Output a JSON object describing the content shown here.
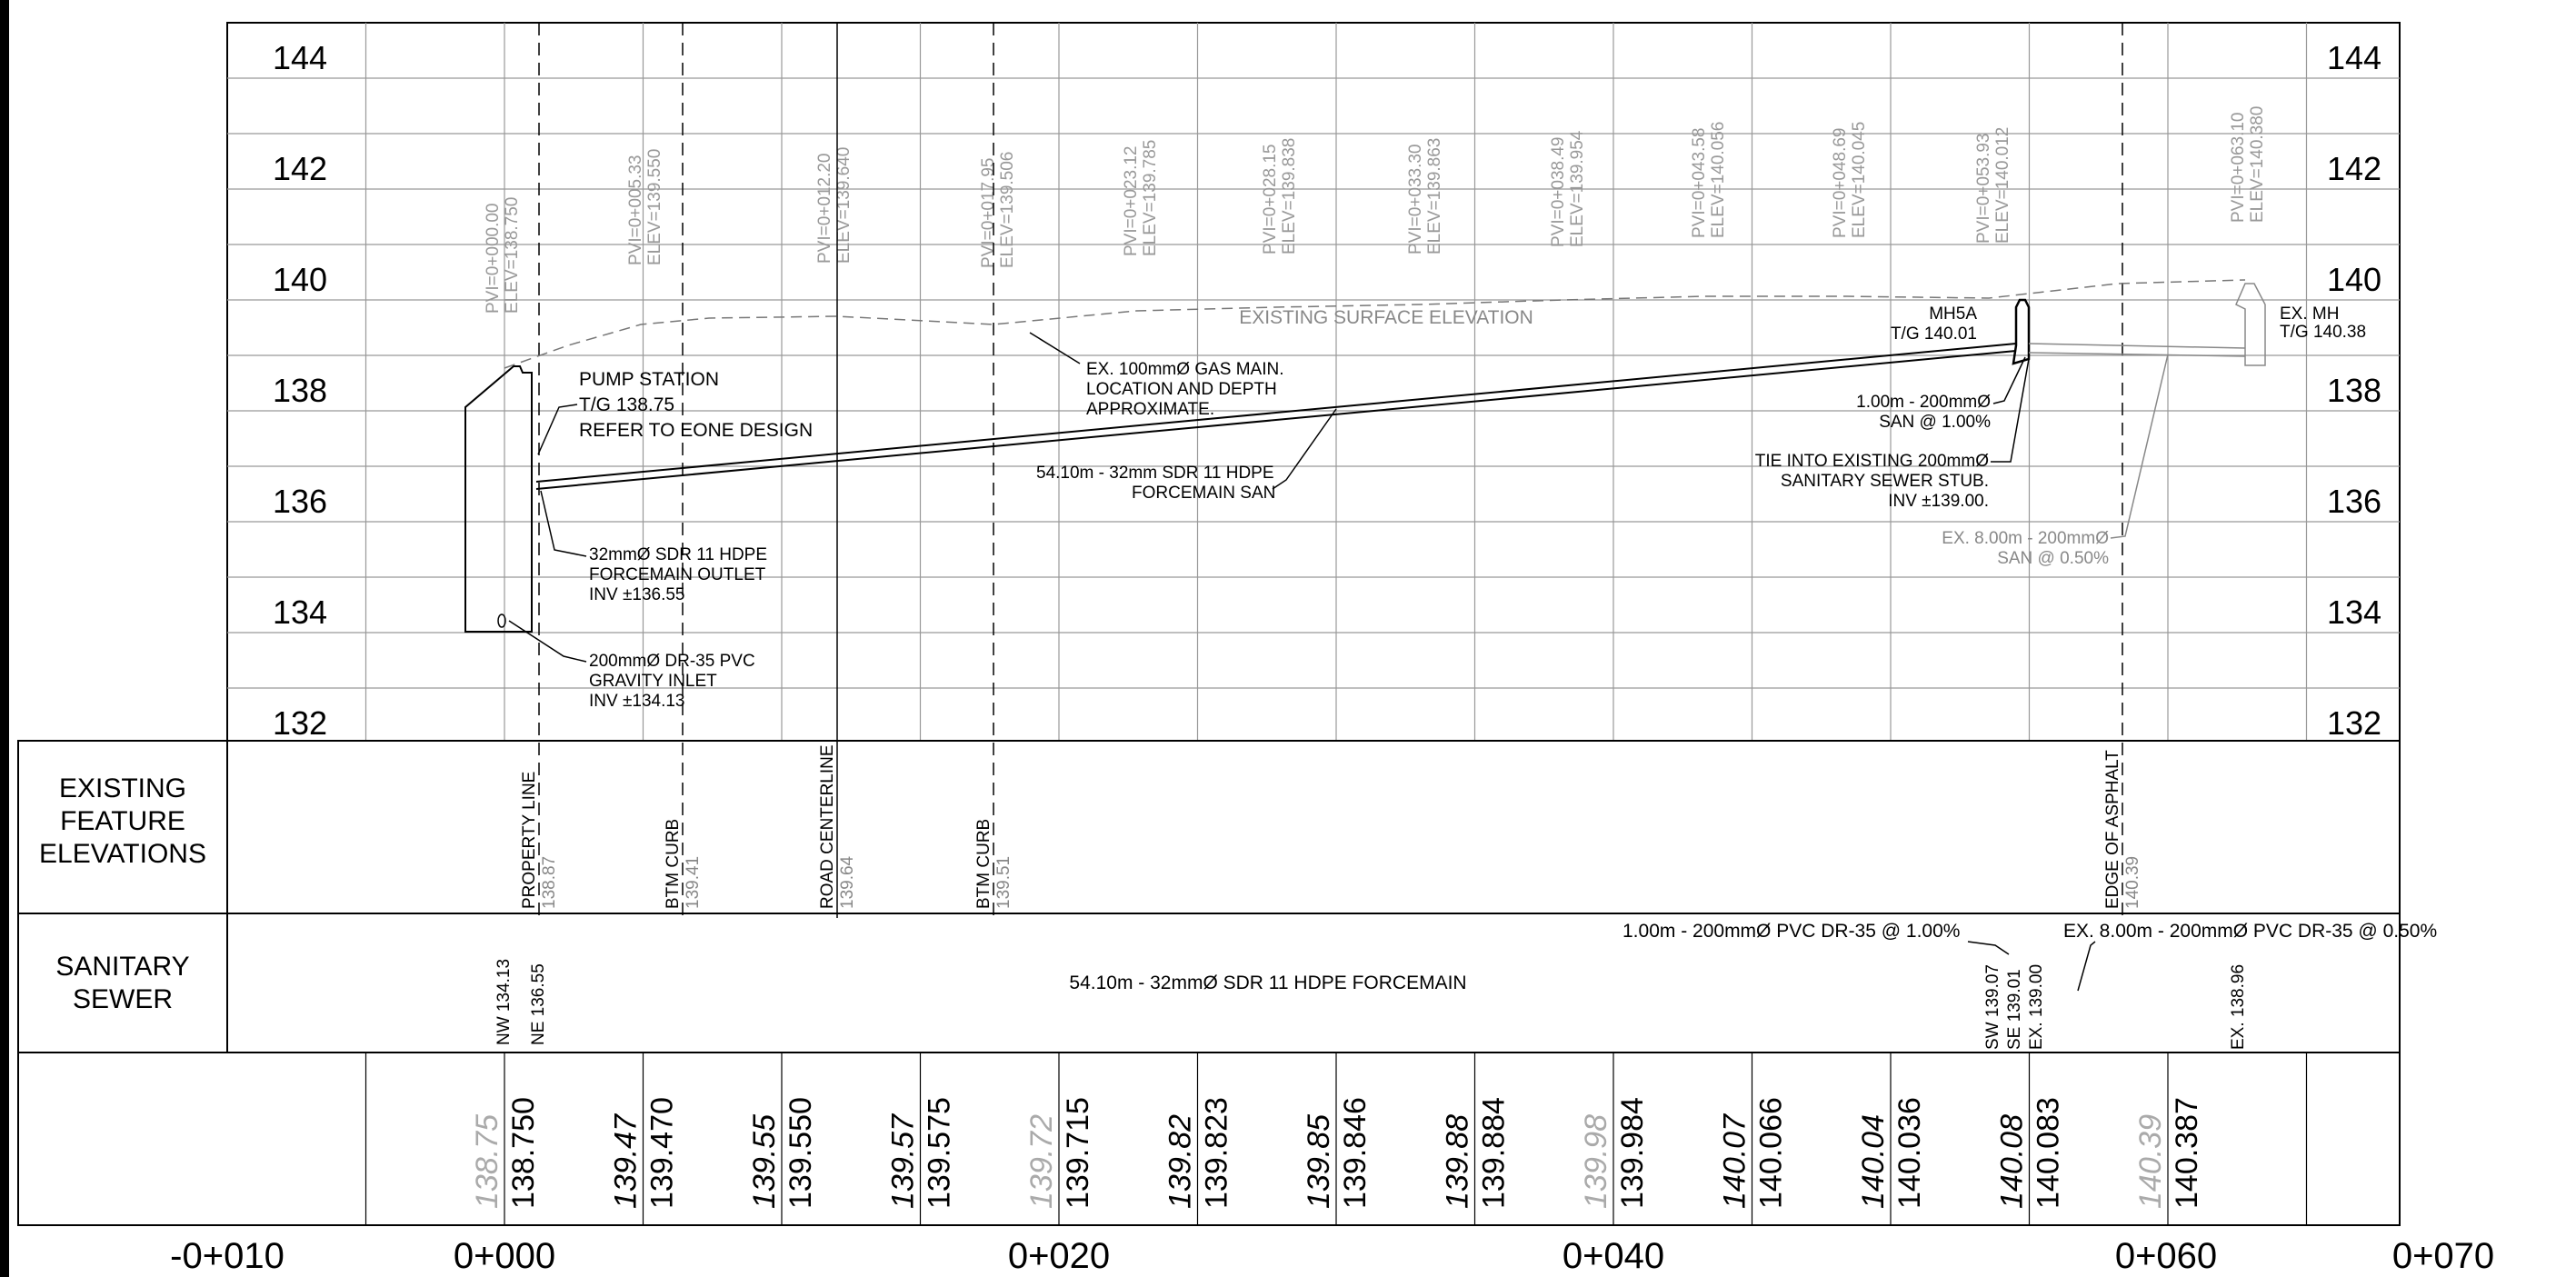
{
  "elevation_labels": [
    "144",
    "142",
    "140",
    "138",
    "136",
    "134",
    "132"
  ],
  "station_labels": [
    "-0+010",
    "0+000",
    "0+020",
    "0+040",
    "0+060",
    "0+070"
  ],
  "row_headers": {
    "existing": [
      "EXISTING",
      "FEATURE",
      "ELEVATIONS"
    ],
    "sanitary": [
      "SANITARY",
      "SEWER"
    ]
  },
  "pvi_labels": [
    {
      "sta": "PVI=0+000.00",
      "elev": "ELEV=138.750"
    },
    {
      "sta": "PVI=0+005.33",
      "elev": "ELEV=139.550"
    },
    {
      "sta": "PVI=0+012.20",
      "elev": "ELEV=139.640"
    },
    {
      "sta": "PVI=0+017.95",
      "elev": "ELEV=139.506"
    },
    {
      "sta": "PVI=0+023.12",
      "elev": "ELEV=139.785"
    },
    {
      "sta": "PVI=0+028.15",
      "elev": "ELEV=139.838"
    },
    {
      "sta": "PVI=0+033.30",
      "elev": "ELEV=139.863"
    },
    {
      "sta": "PVI=0+038.49",
      "elev": "ELEV=139.954"
    },
    {
      "sta": "PVI=0+043.58",
      "elev": "ELEV=140.056"
    },
    {
      "sta": "PVI=0+048.69",
      "elev": "ELEV=140.045"
    },
    {
      "sta": "PVI=0+053.93",
      "elev": "ELEV=140.012"
    },
    {
      "sta": "PVI=0+063.10",
      "elev": "ELEV=140.380"
    }
  ],
  "annotations": {
    "existing_surface": "EXISTING SURFACE ELEVATION",
    "pump_station": [
      "PUMP STATION",
      "T/G 138.75",
      "REFER TO EONE DESIGN"
    ],
    "gas_main": [
      "EX. 100mmØ GAS MAIN.",
      "LOCATION AND DEPTH",
      "APPROXIMATE."
    ],
    "forcemain": [
      "54.10m - 32mm SDR 11 HDPE",
      "FORCEMAIN SAN"
    ],
    "outlet": [
      "32mmØ SDR 11 HDPE",
      "FORCEMAIN OUTLET",
      "INV ±136.55"
    ],
    "inlet": [
      "200mmØ DR-35 PVC",
      "GRAVITY INLET",
      "INV ±134.13"
    ],
    "mh5a": [
      "MH5A",
      "T/G 140.01"
    ],
    "san_100": [
      "1.00m - 200mmØ",
      "SAN @ 1.00%"
    ],
    "tie_in": [
      "TIE INTO EXISTING 200mmØ",
      "SANITARY SEWER STUB.",
      "INV ±139.00."
    ],
    "ex_san": [
      "EX. 8.00m - 200mmØ",
      "SAN @ 0.50%"
    ],
    "ex_mh": [
      "EX. MH",
      "T/G 140.38"
    ]
  },
  "feature_labels": [
    {
      "name": "PROPERTY LINE",
      "elev": "138.87"
    },
    {
      "name": "BTM CURB",
      "elev": "139.41"
    },
    {
      "name": "ROAD CENTERLINE",
      "elev": "139.64"
    },
    {
      "name": "BTM CURB",
      "elev": "139.51"
    },
    {
      "name": "EDGE OF ASPHALT",
      "elev": "140.39"
    }
  ],
  "sewer_labels": {
    "nw": "NW 134.13",
    "ne": "NE 136.55",
    "forcemain": "54.10m - 32mmØ SDR 11 HDPE FORCEMAIN",
    "pvc_100": "1.00m - 200mmØ PVC DR-35 @ 1.00%",
    "ex_pvc": "EX. 8.00m - 200mmØ PVC DR-35 @ 0.50%",
    "sw": "SW 139.07",
    "se": "SE 139.01",
    "ex_inv": "EX. 139.00",
    "ex_far": "EX. 138.96"
  },
  "bottom_values": [
    {
      "ex": "138.75",
      "pr": "138.750",
      "ex_faded": true
    },
    {
      "ex": "139.47",
      "pr": "139.470",
      "ex_faded": false
    },
    {
      "ex": "139.55",
      "pr": "139.550",
      "ex_faded": false
    },
    {
      "ex": "139.57",
      "pr": "139.575",
      "ex_faded": false
    },
    {
      "ex": "139.72",
      "pr": "139.715",
      "ex_faded": true
    },
    {
      "ex": "139.82",
      "pr": "139.823",
      "ex_faded": false
    },
    {
      "ex": "139.85",
      "pr": "139.846",
      "ex_faded": false
    },
    {
      "ex": "139.88",
      "pr": "139.884",
      "ex_faded": false
    },
    {
      "ex": "139.98",
      "pr": "139.984",
      "ex_faded": true
    },
    {
      "ex": "140.07",
      "pr": "140.066",
      "ex_faded": false
    },
    {
      "ex": "140.04",
      "pr": "140.036",
      "ex_faded": false
    },
    {
      "ex": "140.08",
      "pr": "140.083",
      "ex_faded": false
    },
    {
      "ex": "140.39",
      "pr": "140.387",
      "ex_faded": true
    }
  ]
}
